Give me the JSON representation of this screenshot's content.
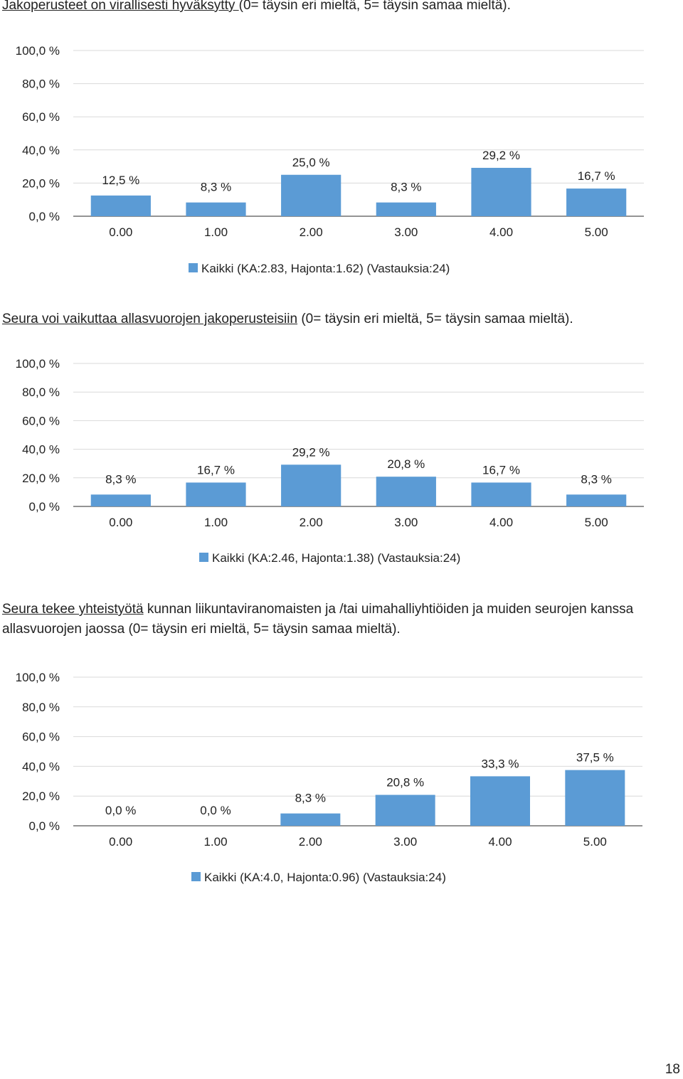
{
  "page_number": "18",
  "chart_data": [
    {
      "type": "bar",
      "heading_underlined": "Jakoperusteet on virallisesti hyväksytty ",
      "heading_rest": "(0= täysin eri mieltä, 5= täysin samaa mieltä).",
      "categories": [
        "0.00",
        "1.00",
        "2.00",
        "3.00",
        "4.00",
        "5.00"
      ],
      "values": [
        12.5,
        8.3,
        25.0,
        8.3,
        29.2,
        16.7
      ],
      "value_labels": [
        "12,5 %",
        "8,3 %",
        "25,0 %",
        "8,3 %",
        "29,2 %",
        "16,7 %"
      ],
      "y_ticks": [
        "0,0 %",
        "20,0 %",
        "40,0 %",
        "60,0 %",
        "80,0 %",
        "100,0 %"
      ],
      "ylim": [
        0,
        100
      ],
      "grid": true,
      "legend": "Kaikki (KA:2.83, Hajonta:1.62) (Vastauksia:24)",
      "legend_position": "bottom",
      "bar_color": "#5b9bd5"
    },
    {
      "type": "bar",
      "heading_underlined": "Seura voi vaikuttaa allasvuorojen jakoperusteisiin",
      "heading_rest": " (0= täysin eri mieltä, 5= täysin samaa mieltä).",
      "categories": [
        "0.00",
        "1.00",
        "2.00",
        "3.00",
        "4.00",
        "5.00"
      ],
      "values": [
        8.3,
        16.7,
        29.2,
        20.8,
        16.7,
        8.3
      ],
      "value_labels": [
        "8,3 %",
        "16,7 %",
        "29,2 %",
        "20,8 %",
        "16,7 %",
        "8,3 %"
      ],
      "y_ticks": [
        "0,0 %",
        "20,0 %",
        "40,0 %",
        "60,0 %",
        "80,0 %",
        "100,0 %"
      ],
      "ylim": [
        0,
        100
      ],
      "grid": true,
      "legend": "Kaikki (KA:2.46, Hajonta:1.38) (Vastauksia:24)",
      "legend_position": "bottom",
      "bar_color": "#5b9bd5"
    },
    {
      "type": "bar",
      "heading_underlined": "Seura tekee yhteistyötä",
      "heading_rest": " kunnan liikuntaviranomaisten ja /tai uimahalliyhtiöiden ja muiden seurojen kanssa allasvuorojen jaossa (0= täysin eri mieltä, 5= täysin samaa mieltä).",
      "categories": [
        "0.00",
        "1.00",
        "2.00",
        "3.00",
        "4.00",
        "5.00"
      ],
      "values": [
        0.0,
        0.0,
        8.3,
        20.8,
        33.3,
        37.5
      ],
      "value_labels": [
        "0,0 %",
        "0,0 %",
        "8,3 %",
        "20,8 %",
        "33,3 %",
        "37,5 %"
      ],
      "y_ticks": [
        "0,0 %",
        "20,0 %",
        "40,0 %",
        "60,0 %",
        "80,0 %",
        "100,0 %"
      ],
      "ylim": [
        0,
        100
      ],
      "grid": true,
      "legend": "Kaikki (KA:4.0, Hajonta:0.96) (Vastauksia:24)",
      "legend_position": "bottom",
      "bar_color": "#5b9bd5"
    }
  ]
}
